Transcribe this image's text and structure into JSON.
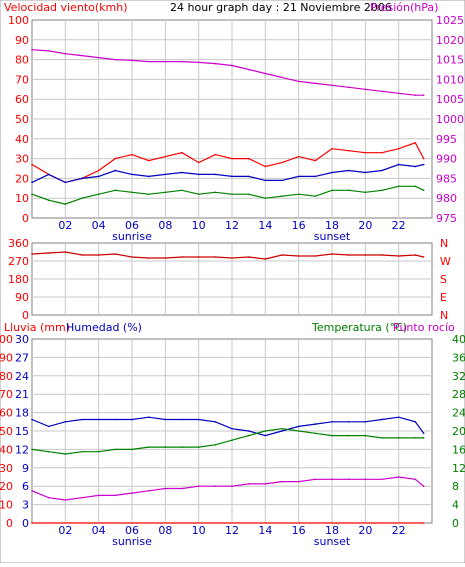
{
  "header": {
    "left_label": "Velocidad viento(kmh)",
    "title": "24 hour graph day : 21 Noviembre 2006",
    "right_label": "Presión(hPa)"
  },
  "markers": {
    "sunrise": "sunrise",
    "sunset": "sunset"
  },
  "colors": {
    "wind": "#ff0000",
    "gust_fill": "#ff0000",
    "wind_avg": "#008000",
    "temp": "#0000c0",
    "pressure": "#cc00cc",
    "direction": "#cc0000",
    "rain": "#ff0000",
    "humidity": "#0000c0",
    "temperature": "#008000",
    "dewpoint": "#cc00cc",
    "label_left": "#ff0000",
    "label_right": "#cc00cc",
    "label_dir": "#ff0000",
    "label_rain": "#ff0000",
    "label_hum": "#0000c0",
    "label_temp": "#008000",
    "label_dew": "#cc00cc",
    "grid": "#c8c8c8"
  },
  "chart_data": [
    {
      "type": "line",
      "panel": "wind-pressure",
      "x_tick_labels": [
        "02",
        "04",
        "06",
        "08",
        "10",
        "12",
        "14",
        "16",
        "18",
        "20",
        "22"
      ],
      "xlim_hours": [
        0,
        24
      ],
      "y_left": {
        "label": "Velocidad viento(kmh)",
        "ylim": [
          0,
          100
        ],
        "ticks": [
          "0",
          "10",
          "20",
          "30",
          "40",
          "50",
          "60",
          "70",
          "80",
          "90",
          "100"
        ]
      },
      "y_right": {
        "label": "Presión(hPa)",
        "ylim": [
          975,
          1025
        ],
        "ticks": [
          "975",
          "980",
          "985",
          "990",
          "995",
          "1000",
          "1005",
          "1010",
          "1015",
          "1020",
          "1025"
        ]
      },
      "grid": true,
      "series": [
        {
          "axis": "left",
          "style": "gust",
          "x": [
            0,
            1,
            2,
            3,
            4,
            5,
            6,
            7,
            8,
            9,
            10,
            11,
            12,
            13,
            14,
            15,
            16,
            17,
            18,
            19,
            20,
            21,
            22,
            23,
            23.5
          ],
          "values": [
            27,
            22,
            18,
            20,
            24,
            30,
            32,
            29,
            31,
            33,
            28,
            32,
            30,
            30,
            26,
            28,
            31,
            29,
            35,
            34,
            33,
            33,
            35,
            38,
            30
          ]
        },
        {
          "axis": "left",
          "style": "avg",
          "x": [
            0,
            1,
            2,
            3,
            4,
            5,
            6,
            7,
            8,
            9,
            10,
            11,
            12,
            13,
            14,
            15,
            16,
            17,
            18,
            19,
            20,
            21,
            22,
            23,
            23.5
          ],
          "values": [
            12,
            9,
            7,
            10,
            12,
            14,
            13,
            12,
            13,
            14,
            12,
            13,
            12,
            12,
            10,
            11,
            12,
            11,
            14,
            14,
            13,
            14,
            16,
            16,
            14
          ]
        },
        {
          "axis": "left",
          "style": "mean",
          "x": [
            0,
            1,
            2,
            3,
            4,
            5,
            6,
            7,
            8,
            9,
            10,
            11,
            12,
            13,
            14,
            15,
            16,
            17,
            18,
            19,
            20,
            21,
            22,
            23,
            23.5
          ],
          "values": [
            18,
            22,
            18,
            20,
            21,
            24,
            22,
            21,
            22,
            23,
            22,
            22,
            21,
            21,
            19,
            19,
            21,
            21,
            23,
            24,
            23,
            24,
            27,
            26,
            27
          ]
        },
        {
          "axis": "right",
          "style": "pressure",
          "x": [
            0,
            1,
            2,
            3,
            4,
            5,
            6,
            7,
            8,
            9,
            10,
            11,
            12,
            13,
            14,
            15,
            16,
            17,
            18,
            19,
            20,
            21,
            22,
            23,
            23.5
          ],
          "values": [
            1017.5,
            1017.2,
            1016.5,
            1016.0,
            1015.5,
            1015.0,
            1014.8,
            1014.5,
            1014.5,
            1014.5,
            1014.3,
            1014.0,
            1013.5,
            1012.5,
            1011.5,
            1010.5,
            1009.5,
            1009.0,
            1008.5,
            1008.0,
            1007.5,
            1007.0,
            1006.5,
            1006.0,
            1006.0
          ]
        }
      ]
    },
    {
      "type": "line",
      "panel": "direction",
      "x_tick_labels": [],
      "xlim_hours": [
        0,
        24
      ],
      "y_left": {
        "label": "",
        "ylim": [
          0,
          360
        ],
        "ticks": [
          "0",
          "90",
          "180",
          "270",
          "360"
        ]
      },
      "y_right": {
        "label": "",
        "ticks": [
          "N",
          "E",
          "S",
          "W",
          "N"
        ]
      },
      "grid": true,
      "series": [
        {
          "axis": "left",
          "style": "direction",
          "x": [
            0,
            1,
            2,
            3,
            4,
            5,
            6,
            7,
            8,
            9,
            10,
            11,
            12,
            13,
            14,
            15,
            16,
            17,
            18,
            19,
            20,
            21,
            22,
            23,
            23.5
          ],
          "values": [
            305,
            310,
            315,
            300,
            300,
            305,
            290,
            285,
            285,
            290,
            290,
            290,
            285,
            290,
            280,
            300,
            295,
            295,
            305,
            300,
            300,
            300,
            295,
            300,
            290
          ]
        }
      ]
    },
    {
      "type": "line",
      "panel": "rain-humidity-temperature",
      "x_tick_labels": [
        "02",
        "04",
        "06",
        "08",
        "10",
        "12",
        "14",
        "16",
        "18",
        "20",
        "22"
      ],
      "xlim_hours": [
        0,
        24
      ],
      "y_left_outer": {
        "label": "Lluvia (mm)",
        "ticks": [
          "0",
          "10",
          "20",
          "30",
          "40",
          "50",
          "60",
          "70",
          "80",
          "90",
          "100"
        ]
      },
      "y_left_inner": {
        "label": "Humedad (%)",
        "ylim": [
          0,
          30
        ],
        "ticks": [
          "0",
          "3",
          "6",
          "9",
          "12",
          "15",
          "18",
          "21",
          "24",
          "27",
          "30"
        ]
      },
      "y_right": {
        "label": "Temperatura (°C)",
        "label2": "Punto rocío",
        "ylim": [
          0,
          40
        ],
        "ticks": [
          "0",
          "4",
          "8",
          "12",
          "16",
          "20",
          "24",
          "28",
          "32",
          "36",
          "40"
        ]
      },
      "grid": true,
      "series": [
        {
          "axis": "right",
          "style": "rain",
          "x": [
            0,
            23.5
          ],
          "values": [
            0,
            0
          ]
        },
        {
          "axis": "right",
          "style": "humidity",
          "x": [
            0,
            1,
            2,
            3,
            4,
            5,
            6,
            7,
            8,
            9,
            10,
            11,
            12,
            13,
            14,
            15,
            16,
            17,
            18,
            19,
            20,
            21,
            22,
            23,
            23.5
          ],
          "values": [
            22.5,
            21.0,
            22.0,
            22.5,
            22.5,
            22.5,
            22.5,
            23.0,
            22.5,
            22.5,
            22.5,
            22.0,
            20.5,
            20.0,
            19.0,
            20.0,
            21.0,
            21.5,
            22.0,
            22.0,
            22.0,
            22.5,
            23.0,
            22.0,
            19.5
          ]
        },
        {
          "axis": "right",
          "style": "temperature",
          "x": [
            0,
            1,
            2,
            3,
            4,
            5,
            6,
            7,
            8,
            9,
            10,
            11,
            12,
            13,
            14,
            15,
            16,
            17,
            18,
            19,
            20,
            21,
            22,
            23,
            23.5
          ],
          "values": [
            16.0,
            15.5,
            15.0,
            15.5,
            15.5,
            16.0,
            16.0,
            16.5,
            16.5,
            16.5,
            16.5,
            17.0,
            18.0,
            19.0,
            20.0,
            20.5,
            20.0,
            19.5,
            19.0,
            19.0,
            19.0,
            18.5,
            18.5,
            18.5,
            18.5
          ]
        },
        {
          "axis": "right",
          "style": "dewpoint",
          "x": [
            0,
            1,
            2,
            3,
            4,
            5,
            6,
            7,
            8,
            9,
            10,
            11,
            12,
            13,
            14,
            15,
            16,
            17,
            18,
            19,
            20,
            21,
            22,
            23,
            23.5
          ],
          "values": [
            7.0,
            5.5,
            5.0,
            5.5,
            6.0,
            6.0,
            6.5,
            7.0,
            7.5,
            7.5,
            8.0,
            8.0,
            8.0,
            8.5,
            8.5,
            9.0,
            9.0,
            9.5,
            9.5,
            9.5,
            9.5,
            9.5,
            10.0,
            9.5,
            8.0
          ]
        }
      ]
    }
  ]
}
